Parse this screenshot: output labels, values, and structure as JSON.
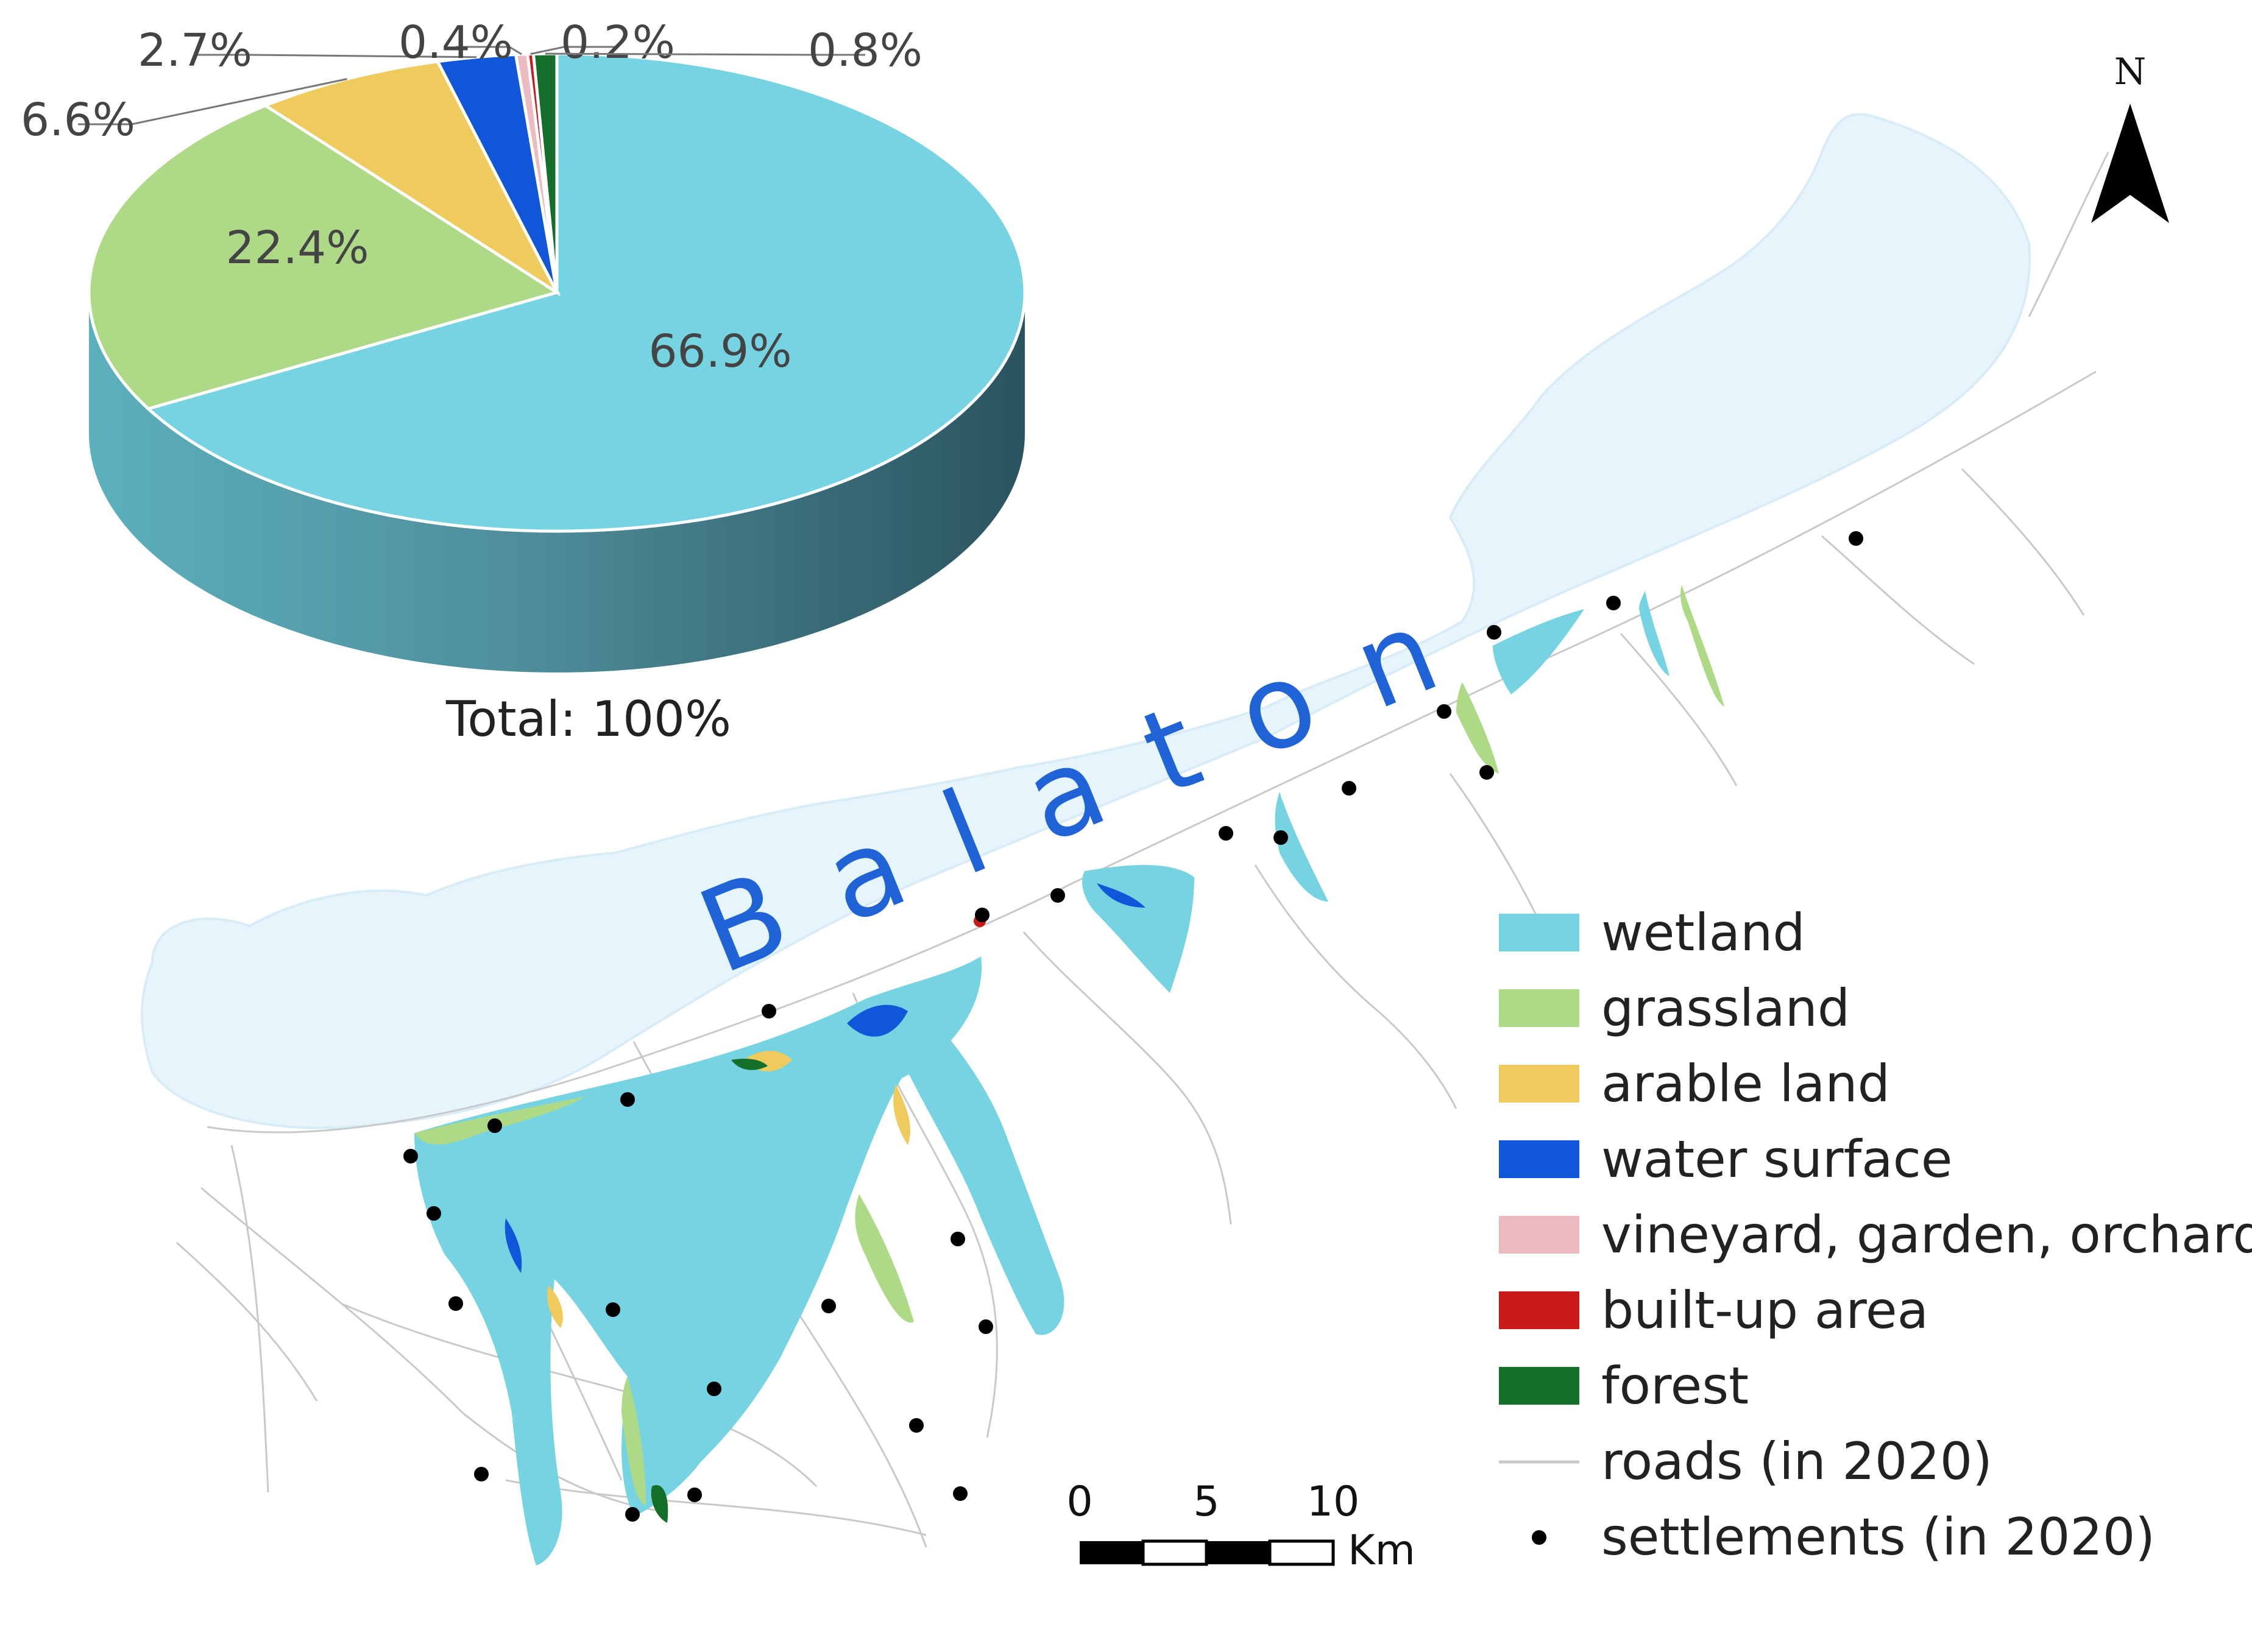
{
  "map": {
    "lake_name": "Balaton",
    "north_label": "N",
    "scale": {
      "ticks": [
        "0",
        "5",
        "10"
      ],
      "unit": "Km"
    },
    "colors": {
      "lake": "#e6f5fc",
      "lake_outline": "#d7ecf7",
      "road": "#c9c9c9",
      "settlement": "#000000"
    }
  },
  "pie": {
    "total_label": "Total: 100%"
  },
  "chart_data": {
    "type": "pie",
    "slices": [
      {
        "label": "wetland",
        "value": 66.9,
        "display": "66.9%",
        "color": "#76d3e2"
      },
      {
        "label": "grassland",
        "value": 22.4,
        "display": "22.4%",
        "color": "#aed987"
      },
      {
        "label": "arable land",
        "value": 6.6,
        "display": "6.6%",
        "color": "#efcb5d"
      },
      {
        "label": "water surface",
        "value": 2.7,
        "display": "2.7%",
        "color": "#0f57d8"
      },
      {
        "label": "vineyard, garden, orchard",
        "value": 0.4,
        "display": "0.4%",
        "color": "#ebbbc1"
      },
      {
        "label": "built-up area",
        "value": 0.2,
        "display": "0.2%",
        "color": "#c91a1a"
      },
      {
        "label": "forest",
        "value": 0.8,
        "display": "0.8%",
        "color": "#156f2a"
      }
    ],
    "legend_placement": "right"
  },
  "legend": {
    "items": [
      {
        "label": "wetland",
        "color": "#76d3e2"
      },
      {
        "label": "grassland",
        "color": "#aed987"
      },
      {
        "label": "arable land",
        "color": "#efcb5d"
      },
      {
        "label": "water surface",
        "color": "#0f57d8"
      },
      {
        "label": "vineyard, garden, orchard",
        "color": "#ebbbc1"
      },
      {
        "label": "built-up area",
        "color": "#c91a1a"
      },
      {
        "label": "forest",
        "color": "#156f2a"
      },
      {
        "label": "roads (in 2020)",
        "color": "#c9c9c9"
      },
      {
        "label": "settlements (in 2020)",
        "color": "#000000"
      }
    ]
  }
}
